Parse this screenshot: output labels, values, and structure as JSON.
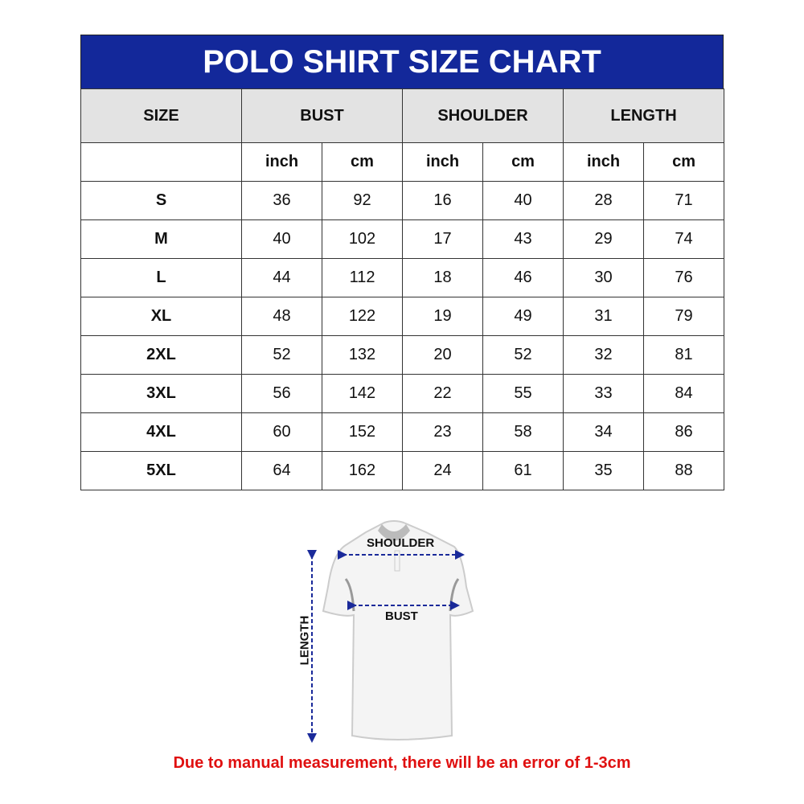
{
  "title": "POLO SHIRT SIZE CHART",
  "headers": {
    "size": "SIZE",
    "bust": "BUST",
    "shoulder": "SHOULDER",
    "length": "LENGTH"
  },
  "units": [
    "inch",
    "cm",
    "inch",
    "cm",
    "inch",
    "cm"
  ],
  "rows": [
    {
      "size": "S",
      "values": [
        "36",
        "92",
        "16",
        "40",
        "28",
        "71"
      ]
    },
    {
      "size": "M",
      "values": [
        "40",
        "102",
        "17",
        "43",
        "29",
        "74"
      ]
    },
    {
      "size": "L",
      "values": [
        "44",
        "112",
        "18",
        "46",
        "30",
        "76"
      ]
    },
    {
      "size": "XL",
      "values": [
        "48",
        "122",
        "19",
        "49",
        "31",
        "79"
      ]
    },
    {
      "size": "2XL",
      "values": [
        "52",
        "132",
        "20",
        "52",
        "32",
        "81"
      ]
    },
    {
      "size": "3XL",
      "values": [
        "56",
        "142",
        "22",
        "55",
        "33",
        "84"
      ]
    },
    {
      "size": "4XL",
      "values": [
        "60",
        "152",
        "23",
        "58",
        "34",
        "86"
      ]
    },
    {
      "size": "5XL",
      "values": [
        "64",
        "162",
        "24",
        "61",
        "35",
        "88"
      ]
    }
  ],
  "diagram": {
    "shoulder_label": "SHOULDER",
    "bust_label": "BUST",
    "length_label": "LENGTH"
  },
  "note": "Due to manual measurement, there will be an error of 1-3cm",
  "colors": {
    "title_bg": "#13289a",
    "header_bg": "#e3e3e3",
    "note": "#e01010",
    "arrow": "#1a2a9a"
  }
}
